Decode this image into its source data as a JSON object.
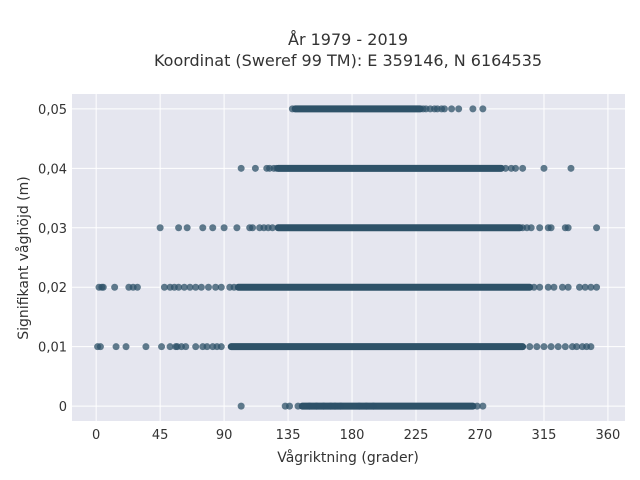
{
  "chart_data": {
    "type": "scatter",
    "title_line1": "År 1979 - 2019",
    "title_line2": "Koordinat (Sweref 99 TM): E 359146, N 6164535",
    "xlabel": "Vågriktning (grader)",
    "ylabel": "Signifikant våghöjd (m)",
    "xlim": [
      -17,
      372
    ],
    "ylim": [
      -0.0025,
      0.0525
    ],
    "x_ticks": [
      0,
      45,
      90,
      135,
      180,
      225,
      270,
      315,
      360
    ],
    "x_tick_labels": [
      "0",
      "45",
      "90",
      "135",
      "180",
      "225",
      "270",
      "315",
      "360"
    ],
    "y_ticks": [
      0,
      0.01,
      0.02,
      0.03,
      0.04,
      0.05
    ],
    "y_tick_labels": [
      "0",
      "0,01",
      "0,02",
      "0,03",
      "0,04",
      "0,05"
    ],
    "grid": true,
    "colors": {
      "marker": "#2e5268",
      "plot_bg": "#e5e6ef",
      "grid": "#ffffff"
    },
    "series": [
      {
        "rows": [
          {
            "y": 0.05,
            "dense_from": 140,
            "dense_to": 228,
            "x": [
              138,
              230,
              232,
              235,
              238,
              240,
              243,
              245,
              250,
              255,
              265,
              272
            ]
          },
          {
            "y": 0.04,
            "dense_from": 128,
            "dense_to": 285,
            "x": [
              102,
              112,
              120,
              122,
              125,
              127,
              288,
              292,
              295,
              300,
              315,
              334
            ]
          },
          {
            "y": 0.03,
            "dense_from": 128,
            "dense_to": 298,
            "x": [
              45,
              58,
              64,
              75,
              82,
              90,
              99,
              108,
              110,
              115,
              118,
              121,
              124,
              300,
              303,
              306,
              312,
              318,
              320,
              330,
              332,
              352
            ]
          },
          {
            "y": 0.02,
            "dense_from": 100,
            "dense_to": 305,
            "x": [
              2,
              4,
              5,
              13,
              23,
              26,
              29,
              48,
              52,
              55,
              58,
              62,
              66,
              70,
              74,
              79,
              84,
              88,
              94,
              97,
              308,
              312,
              318,
              322,
              328,
              332,
              340,
              344,
              348,
              352
            ]
          },
          {
            "y": 0.01,
            "dense_from": 95,
            "dense_to": 300,
            "x": [
              1,
              3,
              14,
              21,
              35,
              46,
              52,
              56,
              57,
              60,
              63,
              70,
              75,
              78,
              82,
              85,
              88,
              305,
              310,
              315,
              320,
              325,
              330,
              335,
              338,
              342,
              345,
              348
            ]
          },
          {
            "y": 0,
            "dense_from": 145,
            "dense_to": 265,
            "x": [
              102,
              133,
              136,
              142,
              150,
              155,
              160,
              165,
              168,
              172,
              185,
              190,
              195,
              268,
              272
            ]
          }
        ]
      }
    ]
  }
}
